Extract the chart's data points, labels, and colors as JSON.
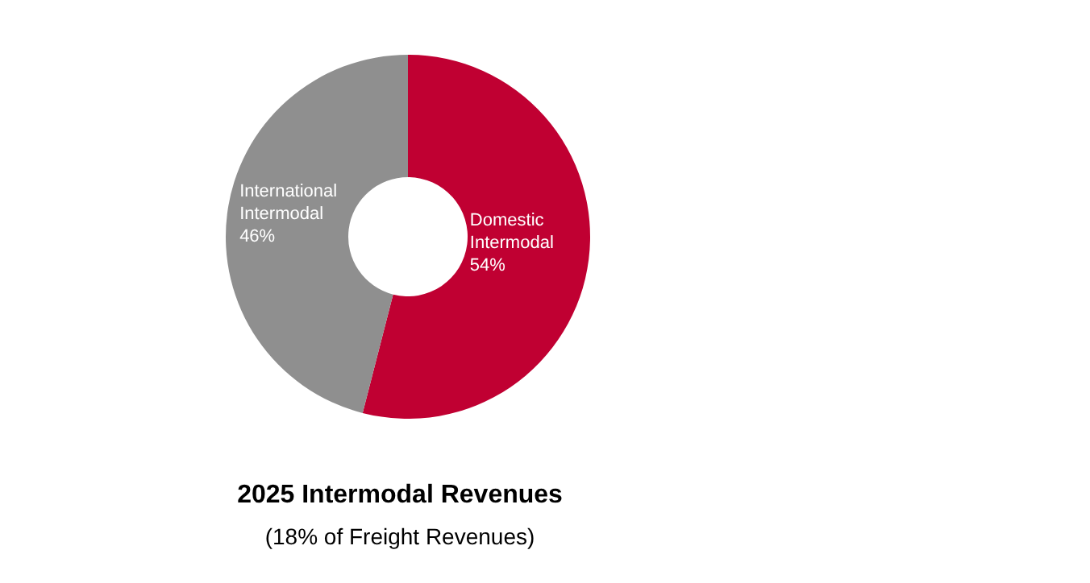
{
  "chart_data": {
    "type": "donut",
    "title": "2025 Intermodal Revenues",
    "subtitle": "(18% of Freight Revenues)",
    "categories": [
      "Domestic Intermodal",
      "International Intermodal"
    ],
    "values": [
      54,
      46
    ],
    "value_labels": [
      "54%",
      "46%"
    ],
    "colors": [
      "#c00032",
      "#8f8f8f"
    ],
    "legend": false
  }
}
